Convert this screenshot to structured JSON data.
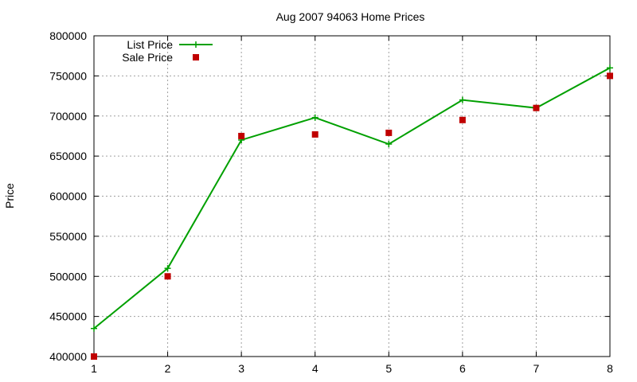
{
  "chart_data": {
    "type": "line",
    "title": "Aug 2007 94063 Home Prices",
    "xlabel": "",
    "ylabel": "Price",
    "xlim": [
      1,
      8
    ],
    "ylim": [
      400000,
      800000
    ],
    "x_ticks": [
      "1",
      "2",
      "3",
      "4",
      "5",
      "6",
      "7",
      "8"
    ],
    "y_ticks": [
      "400000",
      "450000",
      "500000",
      "550000",
      "600000",
      "650000",
      "700000",
      "750000",
      "800000"
    ],
    "grid": true,
    "legend_position": "top-left",
    "series": [
      {
        "name": "List Price",
        "type": "line",
        "marker": "plus",
        "color": "#00a000",
        "x": [
          1,
          2,
          3,
          4,
          5,
          6,
          7,
          8
        ],
        "values": [
          435000,
          510000,
          670000,
          698000,
          665000,
          720000,
          710000,
          760000
        ]
      },
      {
        "name": "Sale Price",
        "type": "scatter",
        "marker": "square",
        "color": "#c00000",
        "x": [
          1,
          2,
          3,
          4,
          5,
          6,
          7,
          8
        ],
        "values": [
          400000,
          500000,
          675000,
          677000,
          679000,
          695000,
          710000,
          750000
        ]
      }
    ]
  }
}
